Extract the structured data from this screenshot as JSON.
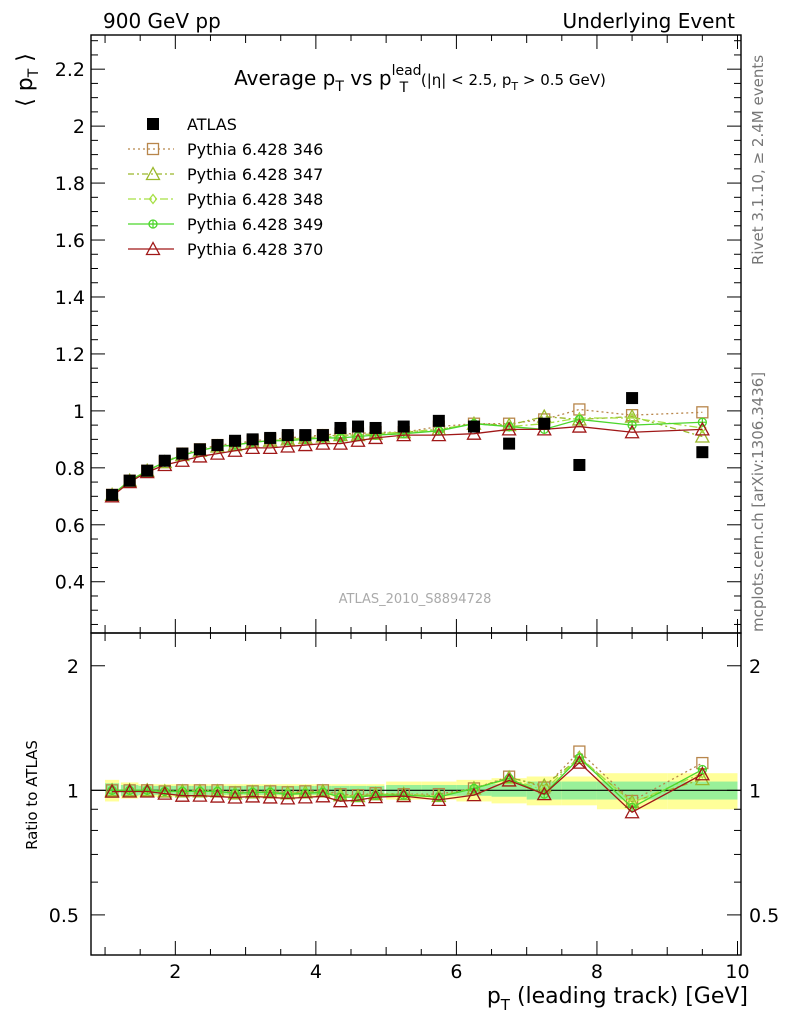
{
  "header": {
    "left": "900 GeV pp",
    "right": "Underlying Event"
  },
  "side_text": {
    "rivet": "Rivet 3.1.10, ≥ 2.4M events",
    "mcplots": "mcplots.cern.ch [arXiv:1306.3436]"
  },
  "chart_data": {
    "type": "scatter",
    "title_parts": {
      "prefix": "Average p",
      "sub1": "T",
      "mid": " vs p",
      "sup": "lead",
      "sub2": "T",
      "cut_prefix": " (|η| < 2.5, p",
      "cut_sub": "T",
      "cut_suffix": " > 0.5 GeV)"
    },
    "ylabel_parts": {
      "main": "⟨ p",
      "sub": "T",
      "close": " ⟩"
    },
    "xlabel_parts": {
      "main": "p",
      "sub": "T",
      "rest": " (leading track) [GeV]"
    },
    "ratio_ylabel": "Ratio to ATLAS",
    "watermark": "ATLAS_2010_S8894728",
    "xlim": [
      0.8,
      10.05
    ],
    "ylim": [
      0.22,
      2.32
    ],
    "ratio_ylim": [
      0.4,
      2.4
    ],
    "x_ticks": [
      "2",
      "4",
      "6",
      "8",
      "10"
    ],
    "y_ticks": [
      "0.4",
      "0.6",
      "0.8",
      "1",
      "1.2",
      "1.4",
      "1.6",
      "1.8",
      "2",
      "2.2"
    ],
    "ratio_ticks": [
      "0.5",
      "1",
      "2"
    ],
    "x": [
      1.1,
      1.35,
      1.6,
      1.85,
      2.1,
      2.35,
      2.6,
      2.85,
      3.1,
      3.35,
      3.6,
      3.85,
      4.1,
      4.35,
      4.6,
      4.85,
      5.25,
      5.75,
      6.25,
      6.75,
      7.25,
      7.75,
      8.5,
      9.5
    ],
    "x_err": [
      0.1,
      0.125,
      0.125,
      0.125,
      0.125,
      0.125,
      0.125,
      0.125,
      0.125,
      0.125,
      0.125,
      0.125,
      0.125,
      0.125,
      0.125,
      0.125,
      0.25,
      0.25,
      0.25,
      0.25,
      0.25,
      0.25,
      0.5,
      0.5
    ],
    "data": {
      "name": "ATLAS",
      "y": [
        0.705,
        0.755,
        0.79,
        0.825,
        0.85,
        0.865,
        0.88,
        0.895,
        0.9,
        0.905,
        0.915,
        0.915,
        0.915,
        0.94,
        0.945,
        0.94,
        0.945,
        0.965,
        0.945,
        0.885,
        0.955,
        0.81,
        1.045,
        0.855
      ],
      "stat_band": [
        0.04,
        0.03,
        0.025,
        0.025,
        0.025,
        0.025,
        0.025,
        0.025,
        0.025,
        0.025,
        0.025,
        0.025,
        0.025,
        0.025,
        0.025,
        0.025,
        0.03,
        0.03,
        0.03,
        0.035,
        0.05,
        0.05,
        0.05,
        0.05
      ],
      "total_band": [
        0.06,
        0.045,
        0.035,
        0.035,
        0.035,
        0.035,
        0.035,
        0.035,
        0.035,
        0.035,
        0.035,
        0.035,
        0.035,
        0.035,
        0.035,
        0.035,
        0.05,
        0.05,
        0.06,
        0.07,
        0.08,
        0.08,
        0.1,
        0.1
      ],
      "color": "#000000"
    },
    "series": [
      {
        "name": "Pythia 6.428 346",
        "color": "#b8864b",
        "marker": "square",
        "dash": "2,3",
        "y": [
          0.705,
          0.755,
          0.79,
          0.82,
          0.85,
          0.865,
          0.88,
          0.885,
          0.895,
          0.9,
          0.905,
          0.91,
          0.915,
          0.92,
          0.92,
          0.925,
          0.925,
          0.945,
          0.955,
          0.955,
          0.97,
          1.005,
          0.985,
          0.995
        ]
      },
      {
        "name": "Pythia 6.428 347",
        "color": "#9ab82a",
        "marker": "triangle",
        "dash": "6,3,2,3",
        "y": [
          0.705,
          0.755,
          0.79,
          0.82,
          0.845,
          0.86,
          0.875,
          0.88,
          0.89,
          0.895,
          0.9,
          0.905,
          0.91,
          0.915,
          0.915,
          0.92,
          0.925,
          0.935,
          0.955,
          0.95,
          0.98,
          0.97,
          0.98,
          0.91
        ]
      },
      {
        "name": "Pythia 6.428 348",
        "color": "#a6e044",
        "marker": "diamond",
        "dash": "8,3,2,3",
        "y": [
          0.705,
          0.755,
          0.79,
          0.82,
          0.845,
          0.86,
          0.875,
          0.88,
          0.89,
          0.895,
          0.9,
          0.905,
          0.905,
          0.915,
          0.915,
          0.92,
          0.925,
          0.935,
          0.955,
          0.945,
          0.955,
          0.975,
          0.975,
          0.94
        ]
      },
      {
        "name": "Pythia 6.428 349",
        "color": "#4cd62c",
        "marker": "circleplus",
        "dash": "",
        "y": [
          0.705,
          0.755,
          0.79,
          0.82,
          0.845,
          0.86,
          0.875,
          0.88,
          0.89,
          0.895,
          0.895,
          0.9,
          0.905,
          0.905,
          0.91,
          0.915,
          0.92,
          0.93,
          0.955,
          0.945,
          0.935,
          0.97,
          0.95,
          0.96
        ]
      },
      {
        "name": "Pythia 6.428 370",
        "color": "#a01818",
        "marker": "triangle",
        "dash": "",
        "y": [
          0.7,
          0.75,
          0.785,
          0.81,
          0.825,
          0.84,
          0.85,
          0.86,
          0.87,
          0.87,
          0.875,
          0.88,
          0.885,
          0.885,
          0.895,
          0.905,
          0.915,
          0.915,
          0.92,
          0.935,
          0.935,
          0.945,
          0.925,
          0.935
        ]
      }
    ]
  }
}
